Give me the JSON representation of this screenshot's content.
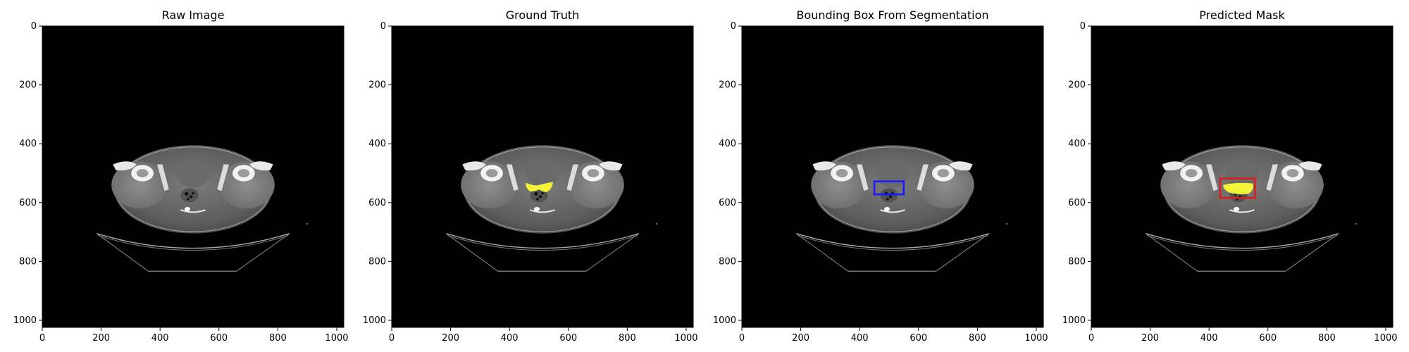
{
  "figure": {
    "panels": [
      {
        "id": "raw",
        "title": "Raw Image",
        "overlay": "none"
      },
      {
        "id": "gt",
        "title": "Ground Truth",
        "overlay": "mask"
      },
      {
        "id": "bbox",
        "title": "Bounding Box From Segmentation",
        "overlay": "box"
      },
      {
        "id": "pred",
        "title": "Predicted Mask",
        "overlay": "mask-and-box"
      }
    ],
    "x_ticks": [
      "0",
      "200",
      "400",
      "600",
      "800",
      "1000"
    ],
    "y_ticks": [
      "0",
      "200",
      "400",
      "600",
      "800",
      "1000"
    ],
    "x_tick_values": [
      0,
      200,
      400,
      600,
      800,
      1000
    ],
    "y_tick_values": [
      0,
      200,
      400,
      600,
      800,
      1000
    ],
    "image_extent": [
      0,
      1024
    ],
    "colors": {
      "mask": "#ffff33",
      "gt_box": "#1a1aff",
      "pred_box": "#e01b1b",
      "background": "#000000"
    },
    "regions": {
      "gt_mask_center": [
        500,
        548
      ],
      "gt_box": {
        "x0": 450,
        "y0": 528,
        "x1": 550,
        "y1": 572
      },
      "pred_box": {
        "x0": 438,
        "y0": 518,
        "x1": 556,
        "y1": 584
      }
    }
  }
}
